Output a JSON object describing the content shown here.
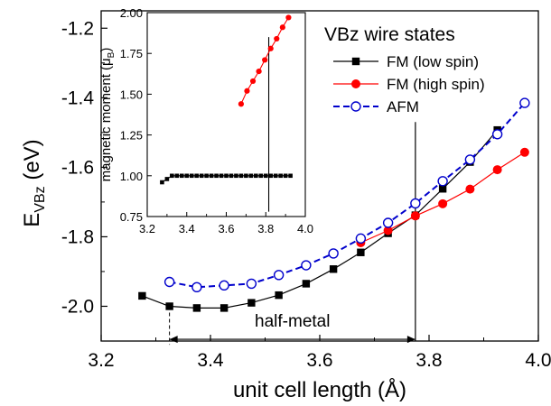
{
  "chart_data": [
    {
      "type": "line",
      "xlabel": "unit cell length (Å)",
      "ylabel": {
        "main": "E",
        "sub": "VBz",
        "unit": "(eV)"
      },
      "xlim": [
        3.2,
        4.0
      ],
      "ylim": [
        -2.1,
        -1.15
      ],
      "xticks": [
        "3.2",
        "3.4",
        "3.6",
        "3.8",
        "4.0"
      ],
      "xtick_values": [
        3.2,
        3.4,
        3.6,
        3.8,
        4.0
      ],
      "yticks": [
        "-1.2",
        "-1.4",
        "-1.6",
        "-1.8",
        "-2.0"
      ],
      "ytick_values": [
        -1.2,
        -1.4,
        -1.6,
        -1.8,
        -2.0
      ],
      "grid": false,
      "legend_title": "VBz wire states",
      "legend_position": "top-right",
      "series": [
        {
          "name": "FM (low spin)",
          "color": "#000000",
          "marker": "square",
          "line": "solid",
          "x": [
            3.275,
            3.325,
            3.375,
            3.425,
            3.475,
            3.525,
            3.575,
            3.625,
            3.675,
            3.725,
            3.775,
            3.825,
            3.875,
            3.925
          ],
          "y": [
            -1.97,
            -2.0,
            -2.005,
            -2.005,
            -1.99,
            -1.968,
            -1.935,
            -1.893,
            -1.845,
            -1.79,
            -1.738,
            -1.662,
            -1.585,
            -1.493
          ]
        },
        {
          "name": "FM (high spin)",
          "color": "#ff0000",
          "marker": "circle",
          "line": "solid",
          "x": [
            3.675,
            3.725,
            3.775,
            3.825,
            3.875,
            3.925,
            3.975
          ],
          "y": [
            -1.817,
            -1.782,
            -1.74,
            -1.705,
            -1.663,
            -1.607,
            -1.557
          ]
        },
        {
          "name": "AFM",
          "color": "#0000cc",
          "marker": "open-circle",
          "line": "dashed",
          "x": [
            3.325,
            3.375,
            3.425,
            3.475,
            3.525,
            3.575,
            3.625,
            3.675,
            3.725,
            3.775,
            3.825,
            3.875,
            3.925,
            3.975
          ],
          "y": [
            -1.93,
            -1.945,
            -1.94,
            -1.935,
            -1.91,
            -1.882,
            -1.848,
            -1.805,
            -1.76,
            -1.704,
            -1.64,
            -1.578,
            -1.505,
            -1.415
          ]
        }
      ],
      "vertical_lines": [
        {
          "x": 3.775,
          "y_from": -2.1,
          "y_to": -1.47
        }
      ],
      "annotations": [
        {
          "text": "half-metal",
          "x_from": 3.325,
          "x_to": 3.775,
          "y": -2.095,
          "label_y": -2.058
        }
      ]
    },
    {
      "type": "line",
      "xlabel": "",
      "ylabel": "magnetic moment (μ_B)",
      "ylabel_main": "magnetic moment (μ",
      "ylabel_sub": "B",
      "ylabel_end": ")",
      "xlim": [
        3.2,
        4.0
      ],
      "ylim": [
        0.75,
        2.0
      ],
      "xticks": [
        "3.2",
        "3.4",
        "3.6",
        "3.8",
        "4.0"
      ],
      "xtick_values": [
        3.2,
        3.4,
        3.6,
        3.8,
        4.0
      ],
      "yticks": [
        "0.75",
        "1.00",
        "1.25",
        "1.50",
        "1.75",
        "2.00"
      ],
      "ytick_values": [
        0.75,
        1.0,
        1.25,
        1.5,
        1.75,
        2.0
      ],
      "grid": false,
      "series": [
        {
          "name": "",
          "color": "#000000",
          "marker": "square",
          "line": "solid",
          "x": [
            3.275,
            3.3,
            3.325,
            3.35,
            3.375,
            3.4,
            3.425,
            3.45,
            3.475,
            3.5,
            3.525,
            3.55,
            3.575,
            3.6,
            3.625,
            3.65,
            3.675,
            3.7,
            3.725,
            3.75,
            3.775,
            3.8,
            3.825,
            3.85,
            3.875,
            3.9,
            3.925
          ],
          "y": [
            0.96,
            0.98,
            1.0,
            1.0,
            1.0,
            1.0,
            1.0,
            1.0,
            1.0,
            1.0,
            1.0,
            1.0,
            1.0,
            1.0,
            1.0,
            1.0,
            1.0,
            1.0,
            1.0,
            1.0,
            1.0,
            1.0,
            1.0,
            1.0,
            1.0,
            1.0,
            1.0
          ]
        },
        {
          "name": "",
          "color": "#ff0000",
          "marker": "circle",
          "line": "solid",
          "x": [
            3.675,
            3.705,
            3.735,
            3.765,
            3.795,
            3.825,
            3.855,
            3.885,
            3.915
          ],
          "y": [
            1.44,
            1.52,
            1.58,
            1.64,
            1.71,
            1.78,
            1.84,
            1.91,
            1.97
          ]
        }
      ],
      "vertical_lines": [
        {
          "x": 3.815,
          "y_from": 0.78,
          "y_to": 1.85
        }
      ]
    }
  ]
}
